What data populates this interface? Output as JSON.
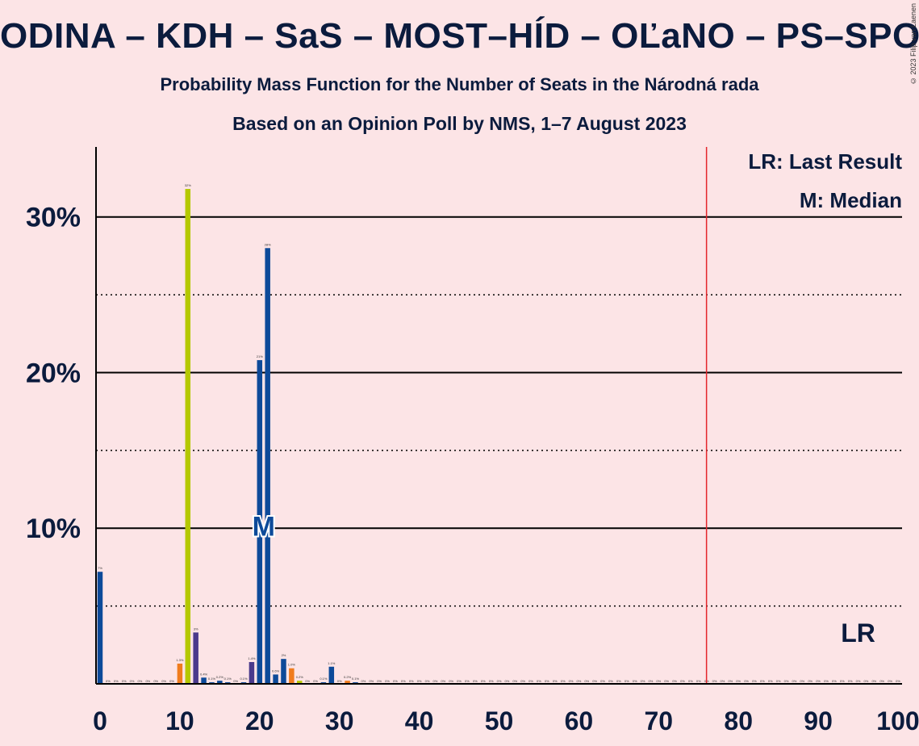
{
  "header": {
    "title": "ODINA – KDH – SaS – MOST–HÍD – OĽaNO – PS–SPOLU",
    "subtitle": "Probability Mass Function for the Number of Seats in the Národná rada",
    "poll_line": "Based on an Opinion Poll by NMS, 1–7 August 2023",
    "copyright": "© 2023 Filip van Laenen"
  },
  "legend": {
    "last_result": "LR: Last Result",
    "median": "M: Median"
  },
  "markers": {
    "median_label": "M",
    "last_result_label": "LR"
  },
  "colors": {
    "background": "#fce4e6",
    "dark_blue": "#0d4a99",
    "purple": "#4a3a8c",
    "lime": "#b5c800",
    "orange": "#f07c1e",
    "majority_line": "#e4262c",
    "text": "#0b1b3d"
  },
  "chart_data": {
    "type": "bar",
    "xlim": [
      0,
      100
    ],
    "ylim": [
      0,
      34.5
    ],
    "x_ticks": [
      0,
      10,
      20,
      30,
      40,
      50,
      60,
      70,
      80,
      90,
      100
    ],
    "x_tick_labels": [
      "0",
      "10",
      "20",
      "30",
      "40",
      "50",
      "60",
      "70",
      "80",
      "90",
      "100"
    ],
    "y_major": [
      10,
      20,
      30
    ],
    "y_major_labels": [
      "10%",
      "20%",
      "30%"
    ],
    "y_minor": [
      5,
      15,
      25
    ],
    "majority_x": 76,
    "median_x": 20.5,
    "median_y": 10.2,
    "last_result_x": 95,
    "grid": "horizontal",
    "bars": [
      {
        "x": 0,
        "value": 7.2,
        "label": "7%",
        "color": "dark_blue"
      },
      {
        "x": 10,
        "value": 1.3,
        "label": "1.3%",
        "color": "orange"
      },
      {
        "x": 11,
        "value": 31.8,
        "label": "32%",
        "color": "lime"
      },
      {
        "x": 12,
        "value": 3.3,
        "label": "3%",
        "color": "purple"
      },
      {
        "x": 13,
        "value": 0.4,
        "label": "0.4%",
        "color": "dark_blue"
      },
      {
        "x": 14,
        "value": 0.1,
        "label": "0.1%",
        "color": "dark_blue"
      },
      {
        "x": 15,
        "value": 0.2,
        "label": "0.2%",
        "color": "dark_blue"
      },
      {
        "x": 16,
        "value": 0.1,
        "label": "0.1%",
        "color": "dark_blue"
      },
      {
        "x": 18,
        "value": 0.1,
        "label": "0.1%",
        "color": "dark_blue"
      },
      {
        "x": 19,
        "value": 1.4,
        "label": "1.4%",
        "color": "purple"
      },
      {
        "x": 20,
        "value": 20.8,
        "label": "21%",
        "color": "dark_blue"
      },
      {
        "x": 21,
        "value": 28,
        "label": "28%",
        "color": "dark_blue"
      },
      {
        "x": 22,
        "value": 0.6,
        "label": "0.6%",
        "color": "dark_blue"
      },
      {
        "x": 23,
        "value": 1.6,
        "label": "2%",
        "color": "dark_blue"
      },
      {
        "x": 24,
        "value": 1,
        "label": "1.0%",
        "color": "orange"
      },
      {
        "x": 25,
        "value": 0.2,
        "label": "0.2%",
        "color": "lime"
      },
      {
        "x": 28,
        "value": 0.1,
        "label": "0.1%",
        "color": "dark_blue"
      },
      {
        "x": 29,
        "value": 1.1,
        "label": "1.1%",
        "color": "dark_blue"
      },
      {
        "x": 31,
        "value": 0.2,
        "label": "0.2%",
        "color": "orange"
      },
      {
        "x": 32,
        "value": 0.1,
        "label": "0.1%",
        "color": "dark_blue"
      }
    ]
  }
}
